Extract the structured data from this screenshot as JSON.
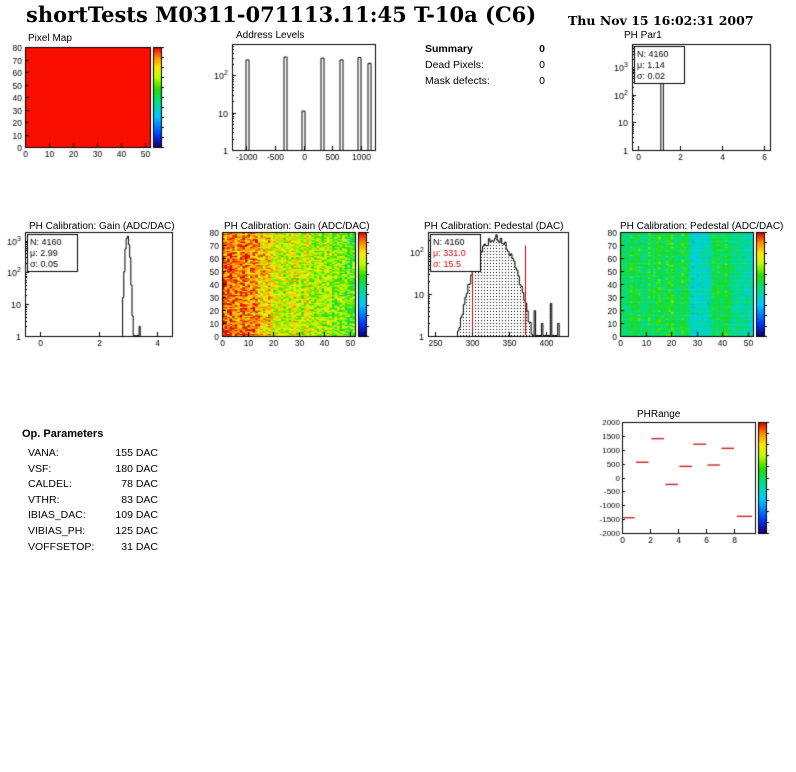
{
  "header": {
    "title": "shortTests M0311-071113.11:45 T-10a (C6)",
    "date": "Thu Nov 15 16:02:31 2007"
  },
  "summary": {
    "title": "Summary",
    "value": "0",
    "rows": [
      {
        "label": "Dead Pixels:",
        "value": "0"
      },
      {
        "label": "Mask defects:",
        "value": "0"
      }
    ]
  },
  "op_parameters": {
    "title": "Op. Parameters",
    "rows": [
      {
        "label": "VANA:",
        "value": "155 DAC"
      },
      {
        "label": "VSF:",
        "value": "180 DAC"
      },
      {
        "label": "CALDEL:",
        "value": "78 DAC"
      },
      {
        "label": "VTHR:",
        "value": "83 DAC"
      },
      {
        "label": "IBIAS_DAC:",
        "value": "109 DAC"
      },
      {
        "label": "VIBIAS_PH:",
        "value": "125 DAC"
      },
      {
        "label": "VOFFSETOP:",
        "value": "31 DAC"
      }
    ]
  },
  "chart_data": [
    {
      "type": "heatmap",
      "title": "Pixel Map",
      "x_range": [
        0,
        52
      ],
      "y_range": [
        0,
        80
      ],
      "x_ticks": [
        0,
        10,
        20,
        30,
        40,
        50
      ],
      "y_ticks": [
        0,
        10,
        20,
        30,
        40,
        50,
        60,
        70,
        80
      ],
      "fill_color": "#fa0e00",
      "colorbar": true,
      "description": "52x80 pixel map, all 4160 pixels at uniform value (solid red)"
    },
    {
      "type": "spike_hist",
      "title": "Address Levels",
      "x_range": [
        -1250,
        1250
      ],
      "x_ticks": [
        -1000,
        -500,
        0,
        500,
        1000
      ],
      "log_y": true,
      "spikes": [
        {
          "x": -990,
          "count": 260
        },
        {
          "x": -325,
          "count": 310
        },
        {
          "x": -10,
          "count": 11
        },
        {
          "x": 325,
          "count": 290
        },
        {
          "x": 660,
          "count": 260
        },
        {
          "x": 970,
          "count": 300
        },
        {
          "x": 1150,
          "count": 210
        }
      ]
    },
    {
      "type": "gauss_log",
      "title": "PH Par1",
      "stats": [
        {
          "text": "N: 4160",
          "color": "#000000"
        },
        {
          "text": "μ: 1.14",
          "color": "#000000"
        },
        {
          "text": "σ: 0.02",
          "color": "#000000"
        }
      ],
      "entries": 4160,
      "mean": 1.14,
      "sigma": 0.02,
      "bin_width": 0.06,
      "x_range": [
        -0.3,
        6.3
      ],
      "x_ticks": [
        0,
        2,
        4,
        6
      ],
      "log_y": true
    },
    {
      "type": "gauss_log",
      "title": "PH Calibration: Gain (ADC/DAC)",
      "stats": [
        {
          "text": "N: 4160",
          "color": "#000000"
        },
        {
          "text": "μ: 2.99",
          "color": "#000000"
        },
        {
          "text": "σ: 0.05",
          "color": "#000000"
        }
      ],
      "entries": 4160,
      "mean": 2.99,
      "sigma": 0.05,
      "bin_width": 0.04,
      "jitter": 0.3,
      "seed": 9,
      "extra_bars": [
        {
          "x": 3.38,
          "count": 2
        }
      ],
      "x_range": [
        -0.5,
        4.5
      ],
      "x_ticks": [
        0,
        2,
        4
      ],
      "log_y": true
    },
    {
      "type": "noise_map",
      "title": "PH Calibration: Gain (ADC/DAC)",
      "x_range": [
        0,
        52
      ],
      "y_range": [
        0,
        80
      ],
      "x_ticks": [
        0,
        10,
        20,
        30,
        40,
        50
      ],
      "y_ticks": [
        0,
        10,
        20,
        30,
        40,
        50,
        60,
        70,
        80
      ],
      "seed": 12345,
      "gradient": {
        "left": 0.93,
        "right": 0.6
      },
      "noise": 0.15,
      "col_noise": 0.05,
      "stripes": [
        {
          "from": 19,
          "to": 24,
          "dv": -0.08
        }
      ],
      "colorbar": true,
      "description": "gain per pixel: high (red) at left columns shading to yellow-green at right"
    },
    {
      "type": "gauss_log",
      "title": "PH Calibration: Pedestal (DAC)",
      "stats": [
        {
          "text": "N: 4160",
          "color": "#000000"
        },
        {
          "text": "μ: 331.0",
          "color": "#cc0000"
        },
        {
          "text": "σ: 15.5",
          "color": "#cc0000"
        }
      ],
      "entries": 4160,
      "mean": 331.0,
      "sigma": 15.5,
      "bin_width": 2,
      "jitter": 0.4,
      "seed": 5,
      "fill": "dots",
      "red_lines": [
        300,
        371
      ],
      "extra_bars": [
        {
          "x": 385,
          "count": 4
        },
        {
          "x": 395,
          "count": 2
        },
        {
          "x": 406,
          "count": 6
        },
        {
          "x": 417,
          "count": 2
        }
      ],
      "x_range": [
        240,
        430
      ],
      "x_ticks": [
        250,
        300,
        350,
        400
      ],
      "log_y": true
    },
    {
      "type": "noise_map",
      "title": "PH Calibration: Pedestal (ADC/DAC)",
      "x_range": [
        0,
        52
      ],
      "y_range": [
        0,
        80
      ],
      "x_ticks": [
        0,
        10,
        20,
        30,
        40,
        50
      ],
      "y_ticks": [
        0,
        10,
        20,
        30,
        40,
        50,
        60,
        70,
        80
      ],
      "seed": 777,
      "gradient": {
        "left": 0.52,
        "right": 0.5
      },
      "noise": 0.09,
      "col_noise": 0.05,
      "stripes": [
        {
          "from": 8,
          "to": 10,
          "dv": -0.06
        },
        {
          "from": 27,
          "to": 34,
          "dv": -0.11
        },
        {
          "from": 44,
          "to": 51,
          "dv": -0.09
        }
      ],
      "colorbar": true,
      "description": "pedestal per pixel: mostly green with cyan column bands"
    },
    {
      "type": "dash_plot",
      "title": "PHRange",
      "x_range": [
        0,
        9.5
      ],
      "x_ticks": [
        0,
        2,
        4,
        6,
        8
      ],
      "y_range": [
        -2000,
        2000
      ],
      "y_ticks": [
        2000,
        1500,
        1000,
        500,
        0,
        -500,
        -1000,
        -1500,
        -2000
      ],
      "color": "#cc2020",
      "colorbar": true,
      "segments": [
        {
          "x0": 0.1,
          "x1": 0.9,
          "y": -1450
        },
        {
          "x0": 1.0,
          "x1": 1.9,
          "y": 550
        },
        {
          "x0": 2.1,
          "x1": 3.0,
          "y": 1400
        },
        {
          "x0": 3.1,
          "x1": 4.0,
          "y": -250
        },
        {
          "x0": 4.1,
          "x1": 5.0,
          "y": 400
        },
        {
          "x0": 5.1,
          "x1": 6.0,
          "y": 1200
        },
        {
          "x0": 6.1,
          "x1": 7.0,
          "y": 450
        },
        {
          "x0": 7.1,
          "x1": 8.0,
          "y": 1050
        },
        {
          "x0": 8.2,
          "x1": 9.3,
          "y": -1400
        }
      ]
    }
  ]
}
